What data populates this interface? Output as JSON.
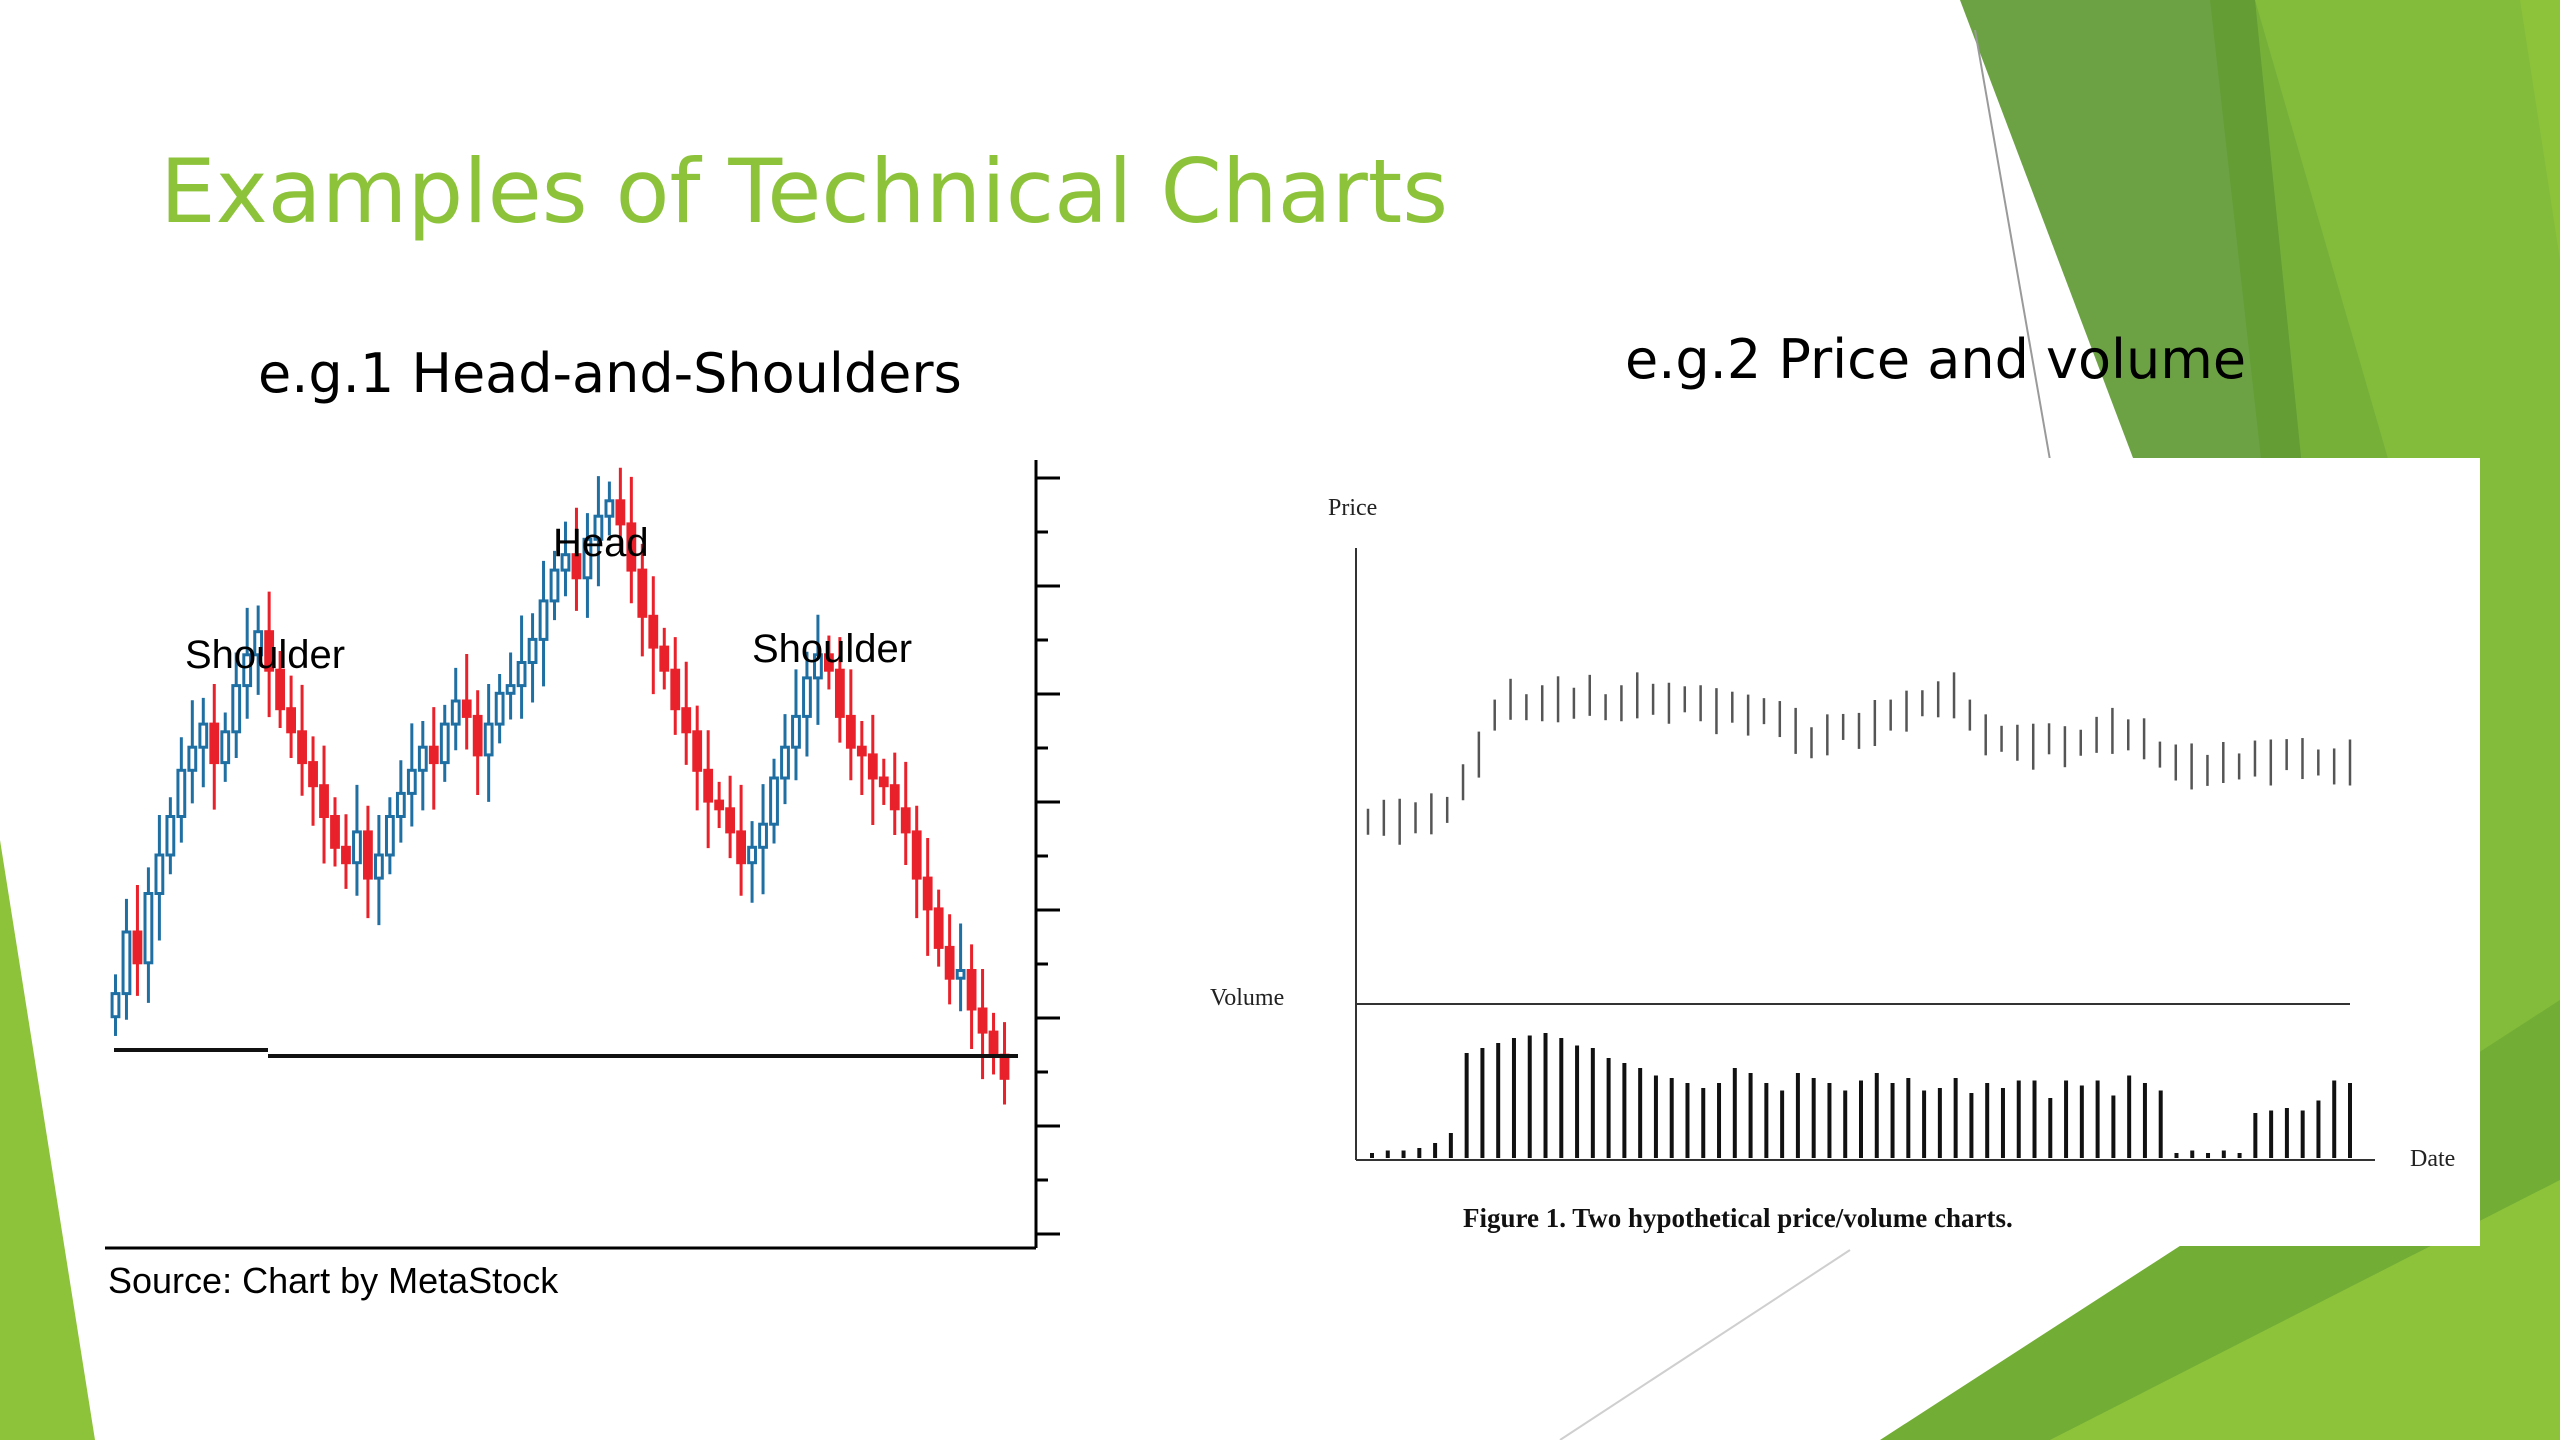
{
  "slide": {
    "title": "Examples of Technical Charts",
    "example1_heading": "e.g.1  Head-and-Shoulders",
    "example2_heading": "e.g.2  Price and volume",
    "colors": {
      "title": "#8dc33b",
      "accent_dark": "#5f9a34",
      "accent_light": "#8dc33b"
    }
  },
  "chart_data": [
    {
      "type": "candlestick",
      "annotations": [
        "Shoulder",
        "Head",
        "Shoulder"
      ],
      "source": "Source: Chart by MetaStock",
      "neckline": true,
      "colors": {
        "up": "#1f6fa3",
        "down": "#e8212b"
      },
      "ylim": [
        0,
        100
      ],
      "close": [
        32,
        40,
        36,
        45,
        50,
        55,
        61,
        64,
        67,
        62,
        66,
        72,
        76,
        79,
        74,
        69,
        66,
        62,
        59,
        55,
        51,
        49,
        53,
        47,
        50,
        55,
        58,
        61,
        64,
        62,
        67,
        70,
        68,
        63,
        67,
        71,
        72,
        75,
        78,
        83,
        87,
        89,
        86,
        91,
        94,
        96,
        93,
        87,
        81,
        77,
        74,
        69,
        66,
        61,
        57,
        56,
        53,
        49,
        51,
        54,
        60,
        64,
        68,
        73,
        76,
        74,
        68,
        64,
        63,
        60,
        59,
        56,
        53,
        47,
        43,
        38,
        34,
        35,
        30,
        27,
        24,
        21
      ]
    },
    {
      "type": "bar",
      "price_label": "Price",
      "volume_label": "Volume",
      "x_label": "Date",
      "caption": "Figure 1. Two hypothetical price/volume charts.",
      "price": [
        35,
        36,
        35,
        36,
        37,
        38,
        45,
        52,
        62,
        66,
        64,
        65,
        66,
        65,
        67,
        64,
        65,
        67,
        66,
        65,
        66,
        65,
        63,
        64,
        62,
        63,
        61,
        58,
        55,
        57,
        59,
        58,
        60,
        62,
        63,
        65,
        66,
        67,
        62,
        57,
        56,
        55,
        54,
        56,
        54,
        55,
        57,
        58,
        57,
        56,
        52,
        50,
        49,
        48,
        50,
        49,
        51,
        50,
        52,
        51,
        50,
        49,
        50
      ],
      "volume": [
        2,
        3,
        3,
        4,
        6,
        10,
        42,
        44,
        46,
        48,
        49,
        50,
        48,
        45,
        44,
        40,
        38,
        36,
        33,
        32,
        30,
        28,
        30,
        36,
        34,
        30,
        27,
        34,
        32,
        30,
        27,
        31,
        34,
        30,
        32,
        27,
        28,
        32,
        26,
        30,
        28,
        31,
        31,
        24,
        31,
        29,
        31,
        25,
        33,
        30,
        27,
        2,
        3,
        2,
        3,
        2,
        18,
        19,
        20,
        19,
        23,
        31,
        30
      ]
    }
  ]
}
